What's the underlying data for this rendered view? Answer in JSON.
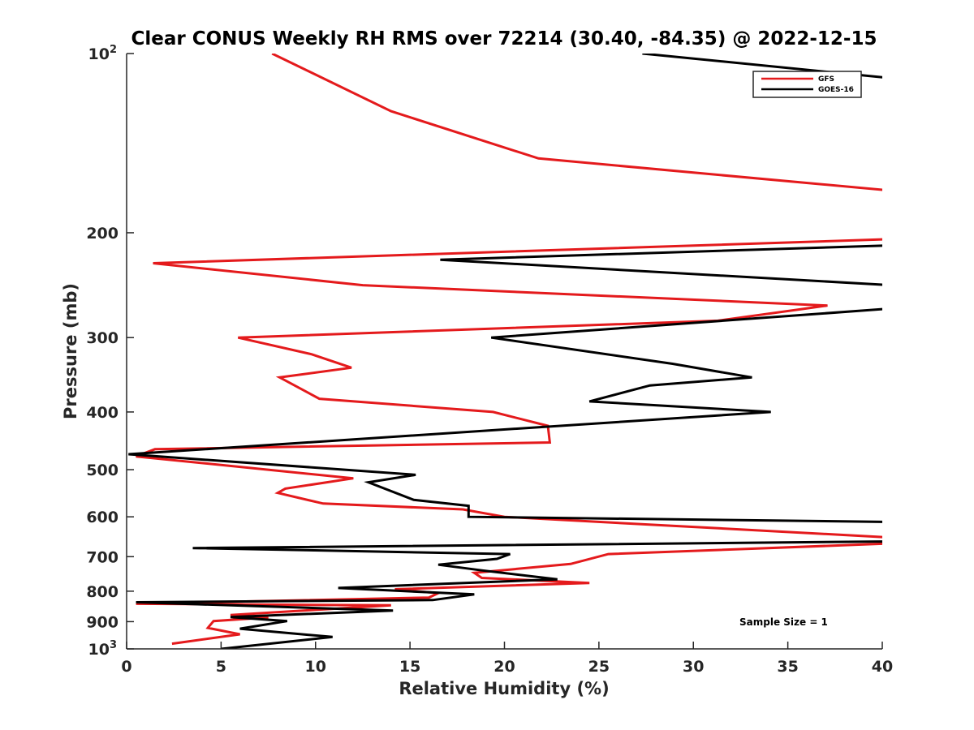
{
  "chart_data": {
    "type": "line",
    "title": "Clear CONUS Weekly RH RMS over 72214 (30.40, -84.35) @ 2022-12-15",
    "xlabel": "Relative Humidity (%)",
    "ylabel": "Pressure (mb)",
    "xlim": [
      0,
      40
    ],
    "ylim": [
      100,
      1000
    ],
    "yscale": "log",
    "y_reversed": true,
    "grid": false,
    "legend_position": "top-right",
    "xticks": [
      0,
      5,
      10,
      15,
      20,
      25,
      30,
      35,
      40
    ],
    "yticks": [
      {
        "value": 100,
        "label": "10",
        "exp": "2"
      },
      {
        "value": 200,
        "label": "200"
      },
      {
        "value": 300,
        "label": "300"
      },
      {
        "value": 400,
        "label": "400"
      },
      {
        "value": 500,
        "label": "500"
      },
      {
        "value": 600,
        "label": "600"
      },
      {
        "value": 700,
        "label": "700"
      },
      {
        "value": 800,
        "label": "800"
      },
      {
        "value": 900,
        "label": "900"
      },
      {
        "value": 1000,
        "label": "10",
        "exp": "3"
      }
    ],
    "series": [
      {
        "name": "GFS",
        "color": "#e41a1c",
        "points": [
          [
            7.7,
            100
          ],
          [
            14.0,
            125
          ],
          [
            21.8,
            150
          ],
          [
            40.5,
            170
          ],
          [
            40.5,
            205
          ],
          [
            1.4,
            225
          ],
          [
            12.5,
            245
          ],
          [
            37.1,
            265
          ],
          [
            31.3,
            281
          ],
          [
            5.9,
            300
          ],
          [
            9.8,
            320
          ],
          [
            11.9,
            337
          ],
          [
            8.1,
            350
          ],
          [
            10.2,
            380
          ],
          [
            19.4,
            400
          ],
          [
            22.3,
            422
          ],
          [
            22.4,
            450
          ],
          [
            1.5,
            462
          ],
          [
            0.5,
            475
          ],
          [
            12.0,
            517
          ],
          [
            8.4,
            538
          ],
          [
            8.0,
            547
          ],
          [
            10.4,
            570
          ],
          [
            17.8,
            583
          ],
          [
            20.0,
            600
          ],
          [
            40.5,
            650
          ],
          [
            40.5,
            665
          ],
          [
            25.5,
            693
          ],
          [
            23.5,
            720
          ],
          [
            18.4,
            745
          ],
          [
            18.8,
            760
          ],
          [
            24.5,
            775
          ],
          [
            14.2,
            794
          ],
          [
            16.5,
            806
          ],
          [
            16.0,
            820
          ],
          [
            0.5,
            840
          ],
          [
            14.0,
            845
          ],
          [
            5.5,
            877
          ],
          [
            7.5,
            885
          ],
          [
            4.6,
            898
          ],
          [
            4.3,
            922
          ],
          [
            6.0,
            945
          ],
          [
            2.4,
            980
          ]
        ]
      },
      {
        "name": "GOES-16",
        "color": "#000000",
        "points": [
          [
            27.3,
            100
          ],
          [
            40.5,
            110
          ],
          [
            40.5,
            210
          ],
          [
            16.6,
            222
          ],
          [
            40.5,
            245
          ],
          [
            40.5,
            268
          ],
          [
            19.3,
            300
          ],
          [
            28.9,
            332
          ],
          [
            33.1,
            350
          ],
          [
            27.7,
            361
          ],
          [
            24.5,
            384
          ],
          [
            34.1,
            400
          ],
          [
            0.1,
            471
          ],
          [
            15.3,
            510
          ],
          [
            12.8,
            525
          ],
          [
            15.2,
            562
          ],
          [
            18.1,
            575
          ],
          [
            18.1,
            600
          ],
          [
            40.5,
            612
          ],
          [
            40.5,
            660
          ],
          [
            3.5,
            677
          ],
          [
            20.3,
            693
          ],
          [
            19.6,
            706
          ],
          [
            16.5,
            722
          ],
          [
            18.8,
            738
          ],
          [
            22.8,
            764
          ],
          [
            11.2,
            790
          ],
          [
            18.4,
            810
          ],
          [
            16.2,
            828
          ],
          [
            0.5,
            835
          ],
          [
            14.1,
            862
          ],
          [
            5.5,
            884
          ],
          [
            8.5,
            898
          ],
          [
            6.0,
            925
          ],
          [
            10.9,
            955
          ],
          [
            5.0,
            1000
          ]
        ]
      }
    ],
    "annotations": [
      "Sample Size = 1"
    ]
  }
}
